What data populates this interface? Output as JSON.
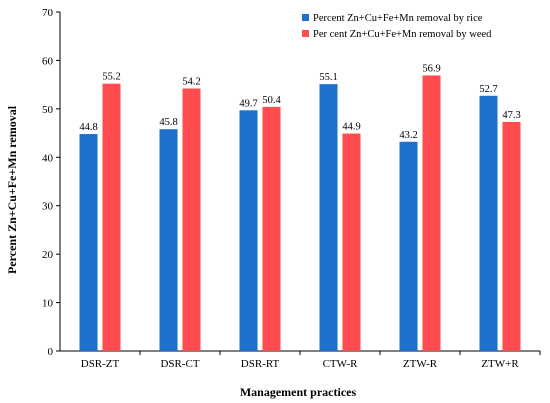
{
  "chart_data": {
    "type": "bar",
    "categories": [
      "DSR-ZT",
      "DSR-CT",
      "DSR-RT",
      "CTW-R",
      "ZTW-R",
      "ZTW+R"
    ],
    "series": [
      {
        "name": "Percent Zn+Cu+Fe+Mn removal by rice",
        "values": [
          44.8,
          45.8,
          49.7,
          55.1,
          43.2,
          52.7
        ],
        "color": "#1f6fcc"
      },
      {
        "name": "Per cent Zn+Cu+Fe+Mn removal by weed",
        "values": [
          55.2,
          54.2,
          50.4,
          44.9,
          56.9,
          47.3
        ],
        "color": "#ff4d4f"
      }
    ],
    "title": "",
    "xlabel": "Management practices",
    "ylabel": "Percent Zn+Cu+Fe+Mn removal",
    "ylim": [
      0,
      70
    ],
    "yticks": [
      0,
      10,
      20,
      30,
      40,
      50,
      60,
      70
    ],
    "legend_position": "top-right",
    "grid": false
  }
}
